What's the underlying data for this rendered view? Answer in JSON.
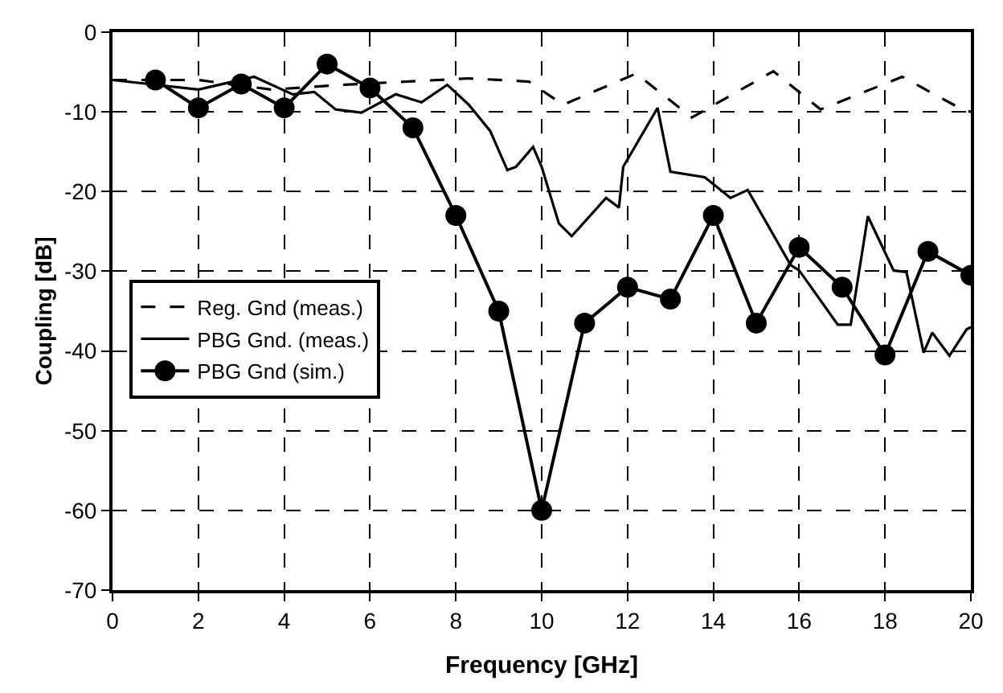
{
  "chart_data": {
    "type": "line",
    "xlabel": "Frequency [GHz]",
    "ylabel": "Coupling [dB]",
    "xlim": [
      0,
      20
    ],
    "ylim": [
      -70,
      0
    ],
    "xticks": [
      0,
      2,
      4,
      6,
      8,
      10,
      12,
      14,
      16,
      18,
      20
    ],
    "yticks": [
      0,
      -10,
      -20,
      -30,
      -40,
      -50,
      -60,
      -70
    ],
    "grid": true,
    "legend": "left",
    "series": [
      {
        "name": "Reg. Gnd (meas.)",
        "color": "#000000",
        "line_style": "dashed",
        "marker": "none",
        "x": [
          0,
          2,
          3.7,
          5.4,
          8.3,
          9.7,
          10.5,
          12.2,
          13.5,
          15.4,
          16.5,
          18.4,
          19.8,
          20
        ],
        "values": [
          -6,
          -6,
          -7.2,
          -6.6,
          -5.8,
          -6.2,
          -9.1,
          -5.2,
          -10.7,
          -4.9,
          -9.7,
          -5.6,
          -9.7,
          -10
        ]
      },
      {
        "name": "PBG Gnd. (meas.)",
        "color": "#000000",
        "line_style": "solid",
        "marker": "none",
        "x": [
          0,
          2,
          3.3,
          4.2,
          4.7,
          5.2,
          5.8,
          6.6,
          7.2,
          7.8,
          8.3,
          8.8,
          9.2,
          9.4,
          9.8,
          10.0,
          10.4,
          10.7,
          11.5,
          11.8,
          11.9,
          12.7,
          13.0,
          13.8,
          14.4,
          14.8,
          15.8,
          16.0,
          16.9,
          17.2,
          17.6,
          18.2,
          18.5,
          18.9,
          19.1,
          19.5,
          19.9,
          20
        ],
        "values": [
          -6,
          -7.2,
          -5.6,
          -7.8,
          -7.5,
          -9.7,
          -10.1,
          -7.8,
          -8.8,
          -6.6,
          -9.1,
          -12.4,
          -17.3,
          -16.9,
          -14.4,
          -16.9,
          -24,
          -25.6,
          -20.8,
          -22,
          -16.9,
          -9.5,
          -17.5,
          -18.2,
          -20.8,
          -19.8,
          -29.2,
          -29.9,
          -36.7,
          -36.7,
          -23.1,
          -29.9,
          -30.1,
          -40.2,
          -37.7,
          -40.6,
          -37.3,
          -37
        ]
      },
      {
        "name": "PBG Gnd (sim.)",
        "color": "#000000",
        "line_style": "solid",
        "marker": "circle",
        "x": [
          1,
          2,
          3,
          4,
          5,
          6,
          7,
          8,
          9,
          10,
          11,
          12,
          13,
          14,
          15,
          16,
          17,
          18,
          19,
          20
        ],
        "values": [
          -6,
          -9.5,
          -6.5,
          -9.5,
          -4,
          -7,
          -12,
          -23,
          -35,
          -60,
          -36.5,
          -32,
          -33.5,
          -23,
          -36.5,
          -27,
          -32,
          -40.5,
          -27.5,
          -30.5
        ]
      }
    ]
  }
}
